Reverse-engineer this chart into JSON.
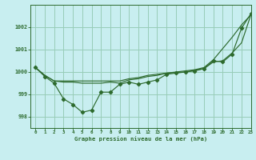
{
  "xlabel": "Graphe pression niveau de la mer (hPa)",
  "bg_color": "#c8eef0",
  "grid_color": "#98ccb8",
  "line_color": "#2d6a2d",
  "xlim": [
    -0.5,
    23
  ],
  "ylim": [
    997.5,
    1003.0
  ],
  "yticks": [
    998,
    999,
    1000,
    1001,
    1002
  ],
  "xticks": [
    0,
    1,
    2,
    3,
    4,
    5,
    6,
    7,
    8,
    9,
    10,
    11,
    12,
    13,
    14,
    15,
    16,
    17,
    18,
    19,
    20,
    21,
    22,
    23
  ],
  "line_upper": [
    1000.2,
    999.85,
    999.6,
    999.6,
    999.6,
    999.6,
    999.6,
    999.6,
    999.6,
    999.6,
    999.7,
    999.75,
    999.85,
    999.9,
    999.95,
    1000.0,
    1000.05,
    1000.1,
    1000.2,
    1000.55,
    1001.05,
    1001.55,
    1002.1,
    1002.55
  ],
  "line_mid": [
    1000.2,
    999.85,
    999.6,
    999.55,
    999.55,
    999.5,
    999.5,
    999.5,
    999.55,
    999.5,
    999.65,
    999.7,
    999.8,
    999.85,
    999.95,
    999.98,
    1000.0,
    1000.08,
    1000.15,
    1000.45,
    1000.5,
    1000.85,
    1001.3,
    1002.55
  ],
  "line_data": [
    1000.2,
    999.8,
    999.5,
    998.8,
    998.55,
    998.2,
    998.3,
    999.1,
    999.1,
    999.45,
    999.55,
    999.45,
    999.55,
    999.65,
    999.9,
    999.95,
    1000.0,
    1000.05,
    1000.15,
    1000.5,
    1000.45,
    1000.8,
    1001.95,
    1002.6
  ]
}
